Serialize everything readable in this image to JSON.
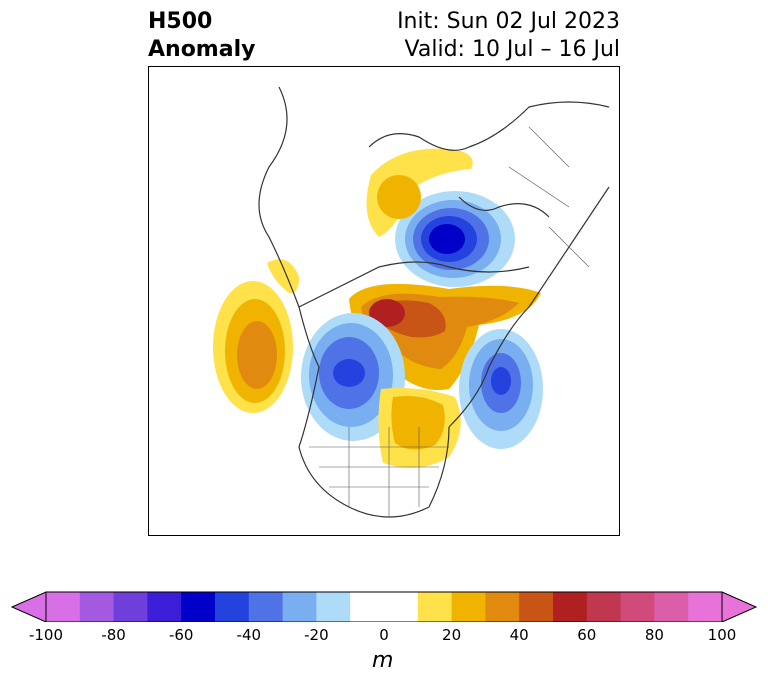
{
  "title": {
    "left_line1": "H500",
    "left_line2": "Anomaly",
    "right_line1": "Init: Sun 02 Jul 2023",
    "right_line2": "Valid: 10 Jul – 16 Jul"
  },
  "colorbar": {
    "units_label": "m",
    "ticks": [
      "-100",
      "-80",
      "-60",
      "-40",
      "-20",
      "0",
      "20",
      "40",
      "60",
      "80",
      "100"
    ],
    "colors": [
      "#d96fe6",
      "#a45ae0",
      "#6f3fdc",
      "#3c1dd8",
      "#0000c8",
      "#2443de",
      "#4f73e6",
      "#79aef0",
      "#aedcf8",
      "#ffffff",
      "#ffffff",
      "#ffe14a",
      "#f0b400",
      "#e08a10",
      "#c85516",
      "#b02020",
      "#c03850",
      "#d04a7a",
      "#da5ea8",
      "#e873d8"
    ]
  },
  "anomalies": [
    {
      "name": "siberia-negative",
      "type": "negative",
      "peak": -65
    },
    {
      "name": "greenland-positive",
      "type": "positive",
      "peak": 55
    },
    {
      "name": "alaska-positive",
      "type": "positive",
      "peak": 35
    },
    {
      "name": "canada-negative",
      "type": "negative",
      "peak": -45
    },
    {
      "name": "atlantic-negative",
      "type": "negative",
      "peak": -40
    },
    {
      "name": "scandinavia-positive",
      "type": "positive",
      "peak": 25
    }
  ]
}
